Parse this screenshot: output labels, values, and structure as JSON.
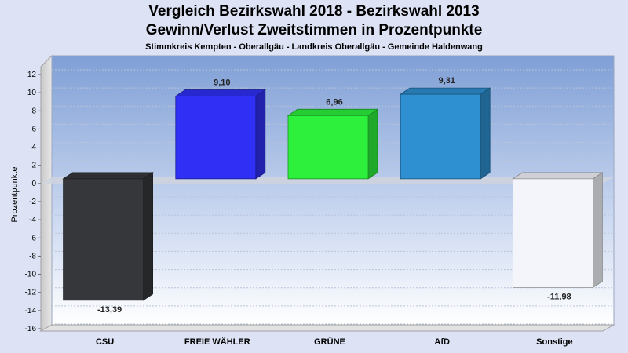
{
  "chart_data": {
    "type": "bar",
    "title": "Vergleich Bezirkswahl 2018 - Bezirkswahl 2013",
    "subtitle": "Gewinn/Verlust Zweitstimmen in Prozentpunkte",
    "subtitle2": "Stimmkreis Kempten - Oberallgäu - Landkreis Oberallgäu - Gemeinde Haldenwang",
    "ylabel": "Prozentpunkte",
    "xlabel": "",
    "ylim": [
      -16,
      12
    ],
    "yticks": [
      12,
      10,
      8,
      6,
      4,
      2,
      0,
      -2,
      -4,
      -6,
      -8,
      -10,
      -12,
      -14,
      -16
    ],
    "categories": [
      "CSU",
      "FREIE WÄHLER",
      "GRÜNE",
      "AfD",
      "Sonstige"
    ],
    "values": [
      -13.39,
      9.1,
      6.96,
      9.31,
      -11.98
    ],
    "value_labels": [
      "-13,39",
      "9,10",
      "6,96",
      "9,31",
      "-11,98"
    ],
    "colors": [
      "#35373b",
      "#2f2ff5",
      "#2df03c",
      "#2e90d0",
      "#f4f5fa"
    ],
    "grid": true,
    "legend": "none"
  }
}
